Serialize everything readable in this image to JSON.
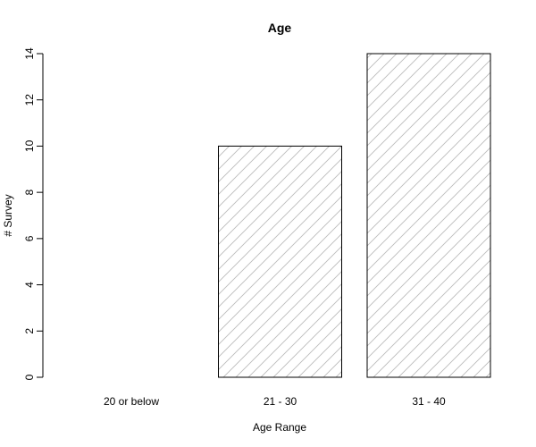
{
  "chart_data": {
    "type": "bar",
    "title": "Age",
    "xlabel": "Age Range",
    "ylabel": "# Survey",
    "categories": [
      "20 or below",
      "21 - 30",
      "31 - 40"
    ],
    "values": [
      0,
      10,
      14
    ],
    "ylim": [
      0,
      14
    ],
    "yticks": [
      "0",
      "2",
      "4",
      "6",
      "8",
      "10",
      "12",
      "14"
    ],
    "grid": false,
    "legend": "none",
    "bar_fill": "hatched",
    "colors": {
      "bar_border": "#000000",
      "hatch": "#bbbbbb",
      "axis": "#000000"
    }
  }
}
